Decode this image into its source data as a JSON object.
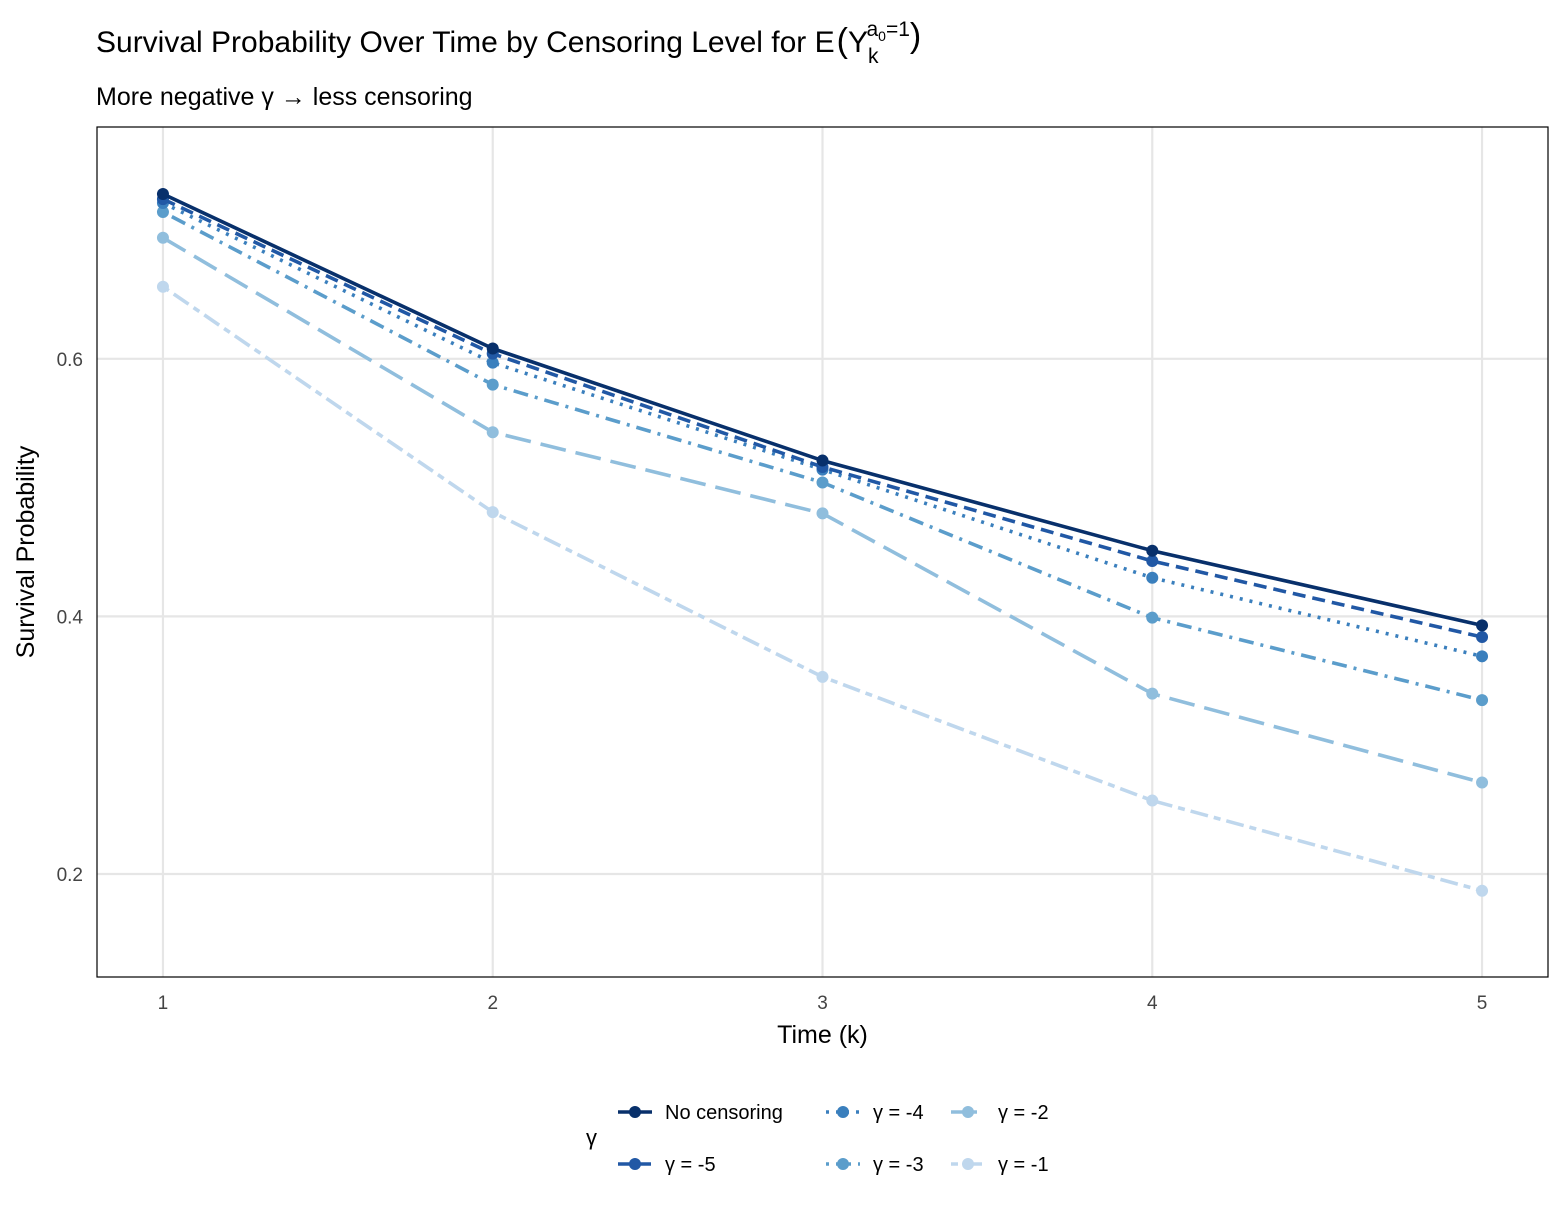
{
  "chart_data": {
    "type": "line",
    "title": {
      "main": "Survival Probability Over Time by Censoring Level for E",
      "sup_expression": "a",
      "sup_subscript": "0",
      "sup_tail": "=1",
      "variable": "Y",
      "sub": "k"
    },
    "subtitle": "More negative γ → less censoring",
    "xlabel": "Time (k)",
    "ylabel": "Survival Probability",
    "x": [
      1,
      2,
      3,
      4,
      5
    ],
    "xticks": [
      "1",
      "2",
      "3",
      "4",
      "5"
    ],
    "yticks": [
      "0.2",
      "0.4",
      "0.6"
    ],
    "ytick_values": [
      0.2,
      0.4,
      0.6
    ],
    "xlim": [
      0.8,
      5.2
    ],
    "ylim": [
      0.12,
      0.78
    ],
    "grid": true,
    "legend_title": "γ",
    "legend_position": "bottom",
    "series": [
      {
        "name": "No censoring",
        "color": "#08306b",
        "dash": "solid",
        "values": [
          0.728,
          0.608,
          0.521,
          0.451,
          0.393
        ]
      },
      {
        "name": "γ = -5",
        "color": "#2158a5",
        "dash": "dashed",
        "values": [
          0.724,
          0.604,
          0.516,
          0.443,
          0.384
        ]
      },
      {
        "name": "γ = -4",
        "color": "#3a7fbd",
        "dash": "dotted",
        "values": [
          0.721,
          0.597,
          0.514,
          0.43,
          0.369
        ]
      },
      {
        "name": "γ = -3",
        "color": "#5b9dcb",
        "dash": "dotdash",
        "values": [
          0.714,
          0.58,
          0.504,
          0.399,
          0.335
        ]
      },
      {
        "name": "γ = -2",
        "color": "#90bedd",
        "dash": "longdash",
        "values": [
          0.694,
          0.543,
          0.48,
          0.34,
          0.271
        ]
      },
      {
        "name": "γ = -1",
        "color": "#bfd7ed",
        "dash": "twodash",
        "values": [
          0.656,
          0.481,
          0.353,
          0.257,
          0.187
        ]
      }
    ]
  }
}
